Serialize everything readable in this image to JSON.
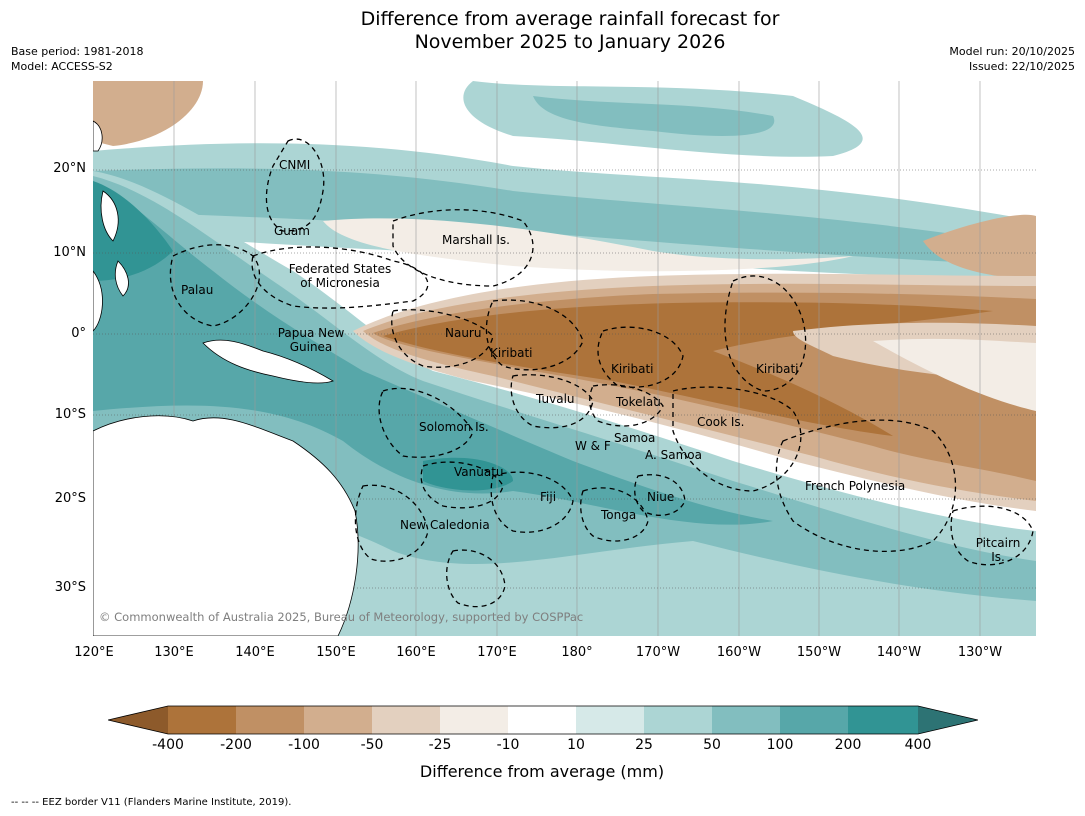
{
  "title": {
    "line1": "Difference from average rainfall forecast for",
    "line2": "November 2025 to January 2026"
  },
  "meta_left": {
    "base_period": "Base period: 1981-2018",
    "model": "Model: ACCESS-S2"
  },
  "meta_right": {
    "model_run": "Model run: 20/10/2025",
    "issued": "Issued: 22/10/2025"
  },
  "latitude_labels": [
    "20°N",
    "10°N",
    "0°",
    "10°S",
    "20°S",
    "30°S"
  ],
  "longitude_labels": [
    "120°E",
    "130°E",
    "140°E",
    "150°E",
    "160°E",
    "170°E",
    "180°",
    "170°W",
    "160°W",
    "150°W",
    "140°W",
    "130°W"
  ],
  "places": {
    "cnmi": "CNMI",
    "guam": "Guam",
    "marshall": "Marshall Is.",
    "fsm1": "Federated States",
    "fsm2": "of Micronesia",
    "palau": "Palau",
    "png1": "Papua New",
    "png2": "Guinea",
    "nauru": "Nauru",
    "kiribati_w": "Kiribati",
    "kiribati_c": "Kiribati",
    "kiribati_e": "Kiribati",
    "tuvalu": "Tuvalu",
    "tokelau": "Tokelau",
    "cook": "Cook Is.",
    "solomon": "Solomon Is.",
    "samoa": "Samoa",
    "wf": "W & F",
    "asamoa": "A. Samoa",
    "vanuatu": "Vanuatu",
    "fiji": "Fiji",
    "niue": "Niue",
    "tonga": "Tonga",
    "frenchpoly": "French Polynesia",
    "newcal": "New Caledonia",
    "pitcairn1": "Pitcairn",
    "pitcairn2": "Is."
  },
  "copyright": "© Commonwealth of Australia 2025, Bureau of Meteorology, supported by COSPPac",
  "colorbar": {
    "ticks": [
      "-400",
      "-200",
      "-100",
      "-50",
      "-25",
      "-10",
      "10",
      "25",
      "50",
      "100",
      "200",
      "400"
    ],
    "colors": [
      "#8d5a2b",
      "#ad733a",
      "#c09064",
      "#d2ae8e",
      "#e3d0bf",
      "#f3ede6",
      "#ffffff",
      "#d6e9e8",
      "#acd5d4",
      "#82bebf",
      "#57a7a9",
      "#319494",
      "#2d7374"
    ],
    "title": "Difference from average (mm)"
  },
  "footnote": "--  --  -- EEZ border V11 (Flanders Marine Institute, 2019)."
}
